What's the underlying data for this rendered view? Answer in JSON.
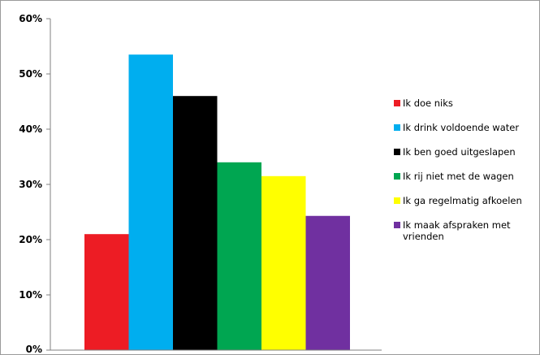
{
  "chart_data": {
    "type": "bar",
    "title": "",
    "xlabel": "",
    "ylabel": "",
    "ylim": [
      0,
      60
    ],
    "yticks": [
      "0%",
      "10%",
      "20%",
      "30%",
      "40%",
      "50%",
      "60%"
    ],
    "grid": false,
    "legend_position": "right",
    "series": [
      {
        "name": "Ik doe niks",
        "value": 21,
        "color": "#ed1c24"
      },
      {
        "name": "Ik drink voldoende water",
        "value": 53.5,
        "color": "#00aeef"
      },
      {
        "name": "Ik ben goed uitgeslapen",
        "value": 46,
        "color": "#000000"
      },
      {
        "name": "Ik rij niet met de wagen",
        "value": 34,
        "color": "#00a651"
      },
      {
        "name": "Ik ga regelmatig afkoelen",
        "value": 31.5,
        "color": "#ffff00"
      },
      {
        "name": "Ik maak afspraken met vrienden",
        "value": 24.3,
        "color": "#7030a0"
      }
    ]
  }
}
